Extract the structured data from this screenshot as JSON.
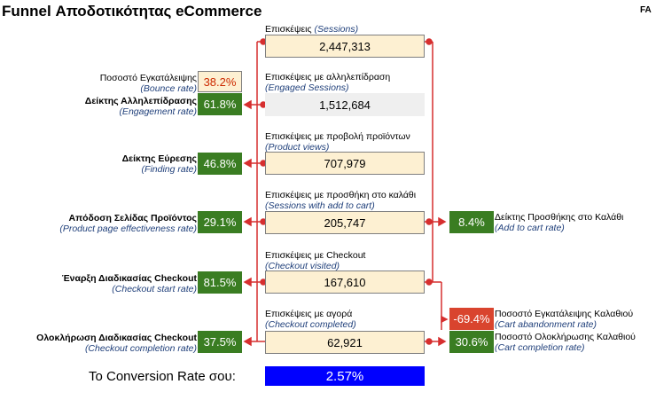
{
  "title": "Funnel Αποδοτικότητας eCommerce",
  "logo": "FA",
  "funnel": [
    {
      "label": "Επισκέψεις",
      "sub": "(Sessions)",
      "value": "2,447,313"
    },
    {
      "label": "Επισκέψεις με αλληλεπίδραση",
      "sub": "(Engaged Sessions)",
      "value": "1,512,684"
    },
    {
      "label": "Επισκέψεις με προβολή προϊόντων",
      "sub": "(Product views)",
      "value": "707,979"
    },
    {
      "label": "Επισκέψεις με προσθήκη στο καλάθι",
      "sub": "(Sessions with add to cart)",
      "value": "205,747"
    },
    {
      "label": "Επισκέψεις με Checkout",
      "sub": "(Checkout visited)",
      "value": "167,610"
    },
    {
      "label": "Επισκέψεις με αγορά",
      "sub": "(Checkout completed)",
      "value": "62,921"
    }
  ],
  "left_metrics": [
    {
      "label": "Ποσοστό Εγκατάλειψης",
      "sub": "(Bounce rate)",
      "value": "38.2%"
    },
    {
      "label": "Δείκτης Αλληλεπίδρασης",
      "sub": "(Engagement rate)",
      "value": "61.8%"
    },
    {
      "label": "Δείκτης Εύρεσης",
      "sub": "(Finding rate)",
      "value": "46.8%"
    },
    {
      "label": "Απόδοση Σελίδας Προϊόντος",
      "sub": "(Product page effectiveness rate)",
      "value": "29.1%"
    },
    {
      "label": "Έναρξη Διαδικασίας Checkout",
      "sub": "(Checkout start rate)",
      "value": "81.5%"
    },
    {
      "label": "Ολοκλήρωση Διαδικασίας Checkout",
      "sub": "(Checkout completion rate)",
      "value": "37.5%"
    }
  ],
  "right_metrics": [
    {
      "label": "Δείκτης Προσθήκης στο Καλάθι",
      "sub": "(Add to cart rate)",
      "value": "8.4%"
    },
    {
      "label": "Ποσοστό Εγκατάλειψης Καλαθιού",
      "sub": "(Cart abandonment rate)",
      "value": "-69.4%"
    },
    {
      "label": "Ποσοστό Ολοκλήρωσης Καλαθιού",
      "sub": "(Cart completion rate)",
      "value": "30.6%"
    }
  ],
  "conversion": {
    "label": "To Conversion Rate σου:",
    "value": "2.57%"
  },
  "colors": {
    "green": "#3a7d22",
    "red": "#d9442e",
    "blue": "#0000ff",
    "box": "#fdf0d2",
    "line": "#d62f2f"
  }
}
